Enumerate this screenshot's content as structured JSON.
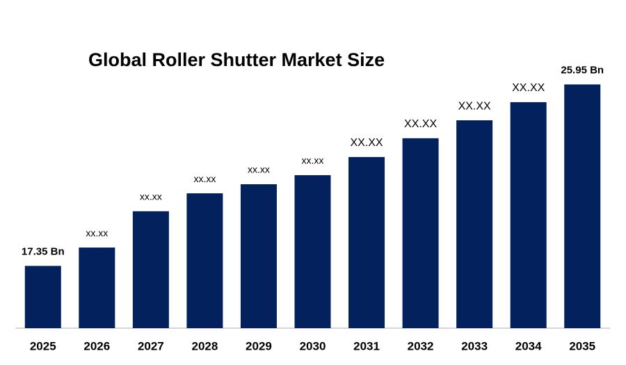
{
  "chart_data": {
    "type": "bar",
    "title": "Global Roller Shutter Market Size",
    "categories": [
      "2025",
      "2026",
      "2027",
      "2028",
      "2029",
      "2030",
      "2031",
      "2032",
      "2033",
      "2034",
      "2035"
    ],
    "values": [
      17.35,
      18.22,
      19.94,
      20.79,
      21.22,
      21.65,
      22.51,
      23.4,
      24.25,
      25.11,
      25.95
    ],
    "value_labels": [
      "17.35 Bn",
      "xx.xx",
      "xx.xx",
      "xx.xx",
      "xx.xx",
      "xx.xx",
      "XX.XX",
      "XX.XX",
      "XX.XX",
      "XX.XX",
      "25.95 Bn"
    ],
    "color": "#03215c",
    "ylim": [
      14.4,
      27.5
    ]
  }
}
